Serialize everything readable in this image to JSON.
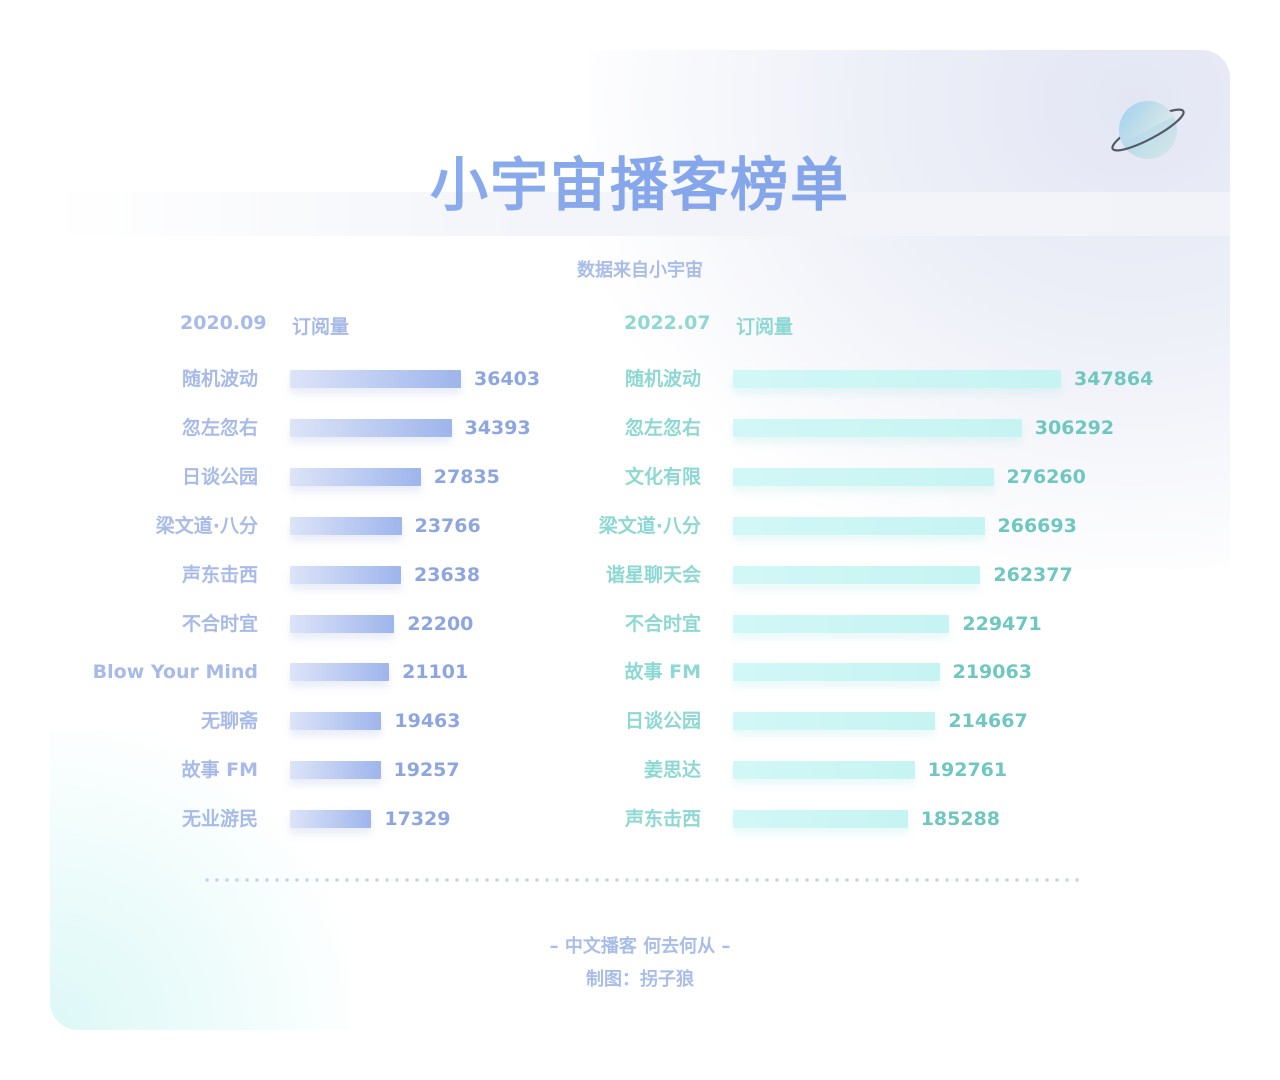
{
  "title": "小宇宙播客榜单",
  "subtitle": "数据来自小宇宙",
  "footer": {
    "line1": "– 中文播客 何去何从 –",
    "line2": "制图：拐子狼"
  },
  "colors": {
    "title": "#86a6ea",
    "left_accent": "#9eb5ec",
    "right_accent": "#6fc7c1"
  },
  "icon": "planet-icon",
  "chart_data": [
    {
      "type": "bar",
      "orientation": "horizontal",
      "period": "2020.09",
      "metric": "订阅量",
      "categories": [
        "随机波动",
        "忽左忽右",
        "日谈公园",
        "梁文道·八分",
        "声东击西",
        "不合时宜",
        "Blow Your Mind",
        "无聊斋",
        "故事 FM",
        "无业游民"
      ],
      "values": [
        36403,
        34393,
        27835,
        23766,
        23638,
        22200,
        21101,
        19463,
        19257,
        17329
      ]
    },
    {
      "type": "bar",
      "orientation": "horizontal",
      "period": "2022.07",
      "metric": "订阅量",
      "categories": [
        "随机波动",
        "忽左忽右",
        "文化有限",
        "梁文道·八分",
        "谐星聊天会",
        "不合时宜",
        "故事 FM",
        "日谈公园",
        "姜思达",
        "声东击西"
      ],
      "values": [
        347864,
        306292,
        276260,
        266693,
        262377,
        229471,
        219063,
        214667,
        192761,
        185288
      ]
    }
  ]
}
